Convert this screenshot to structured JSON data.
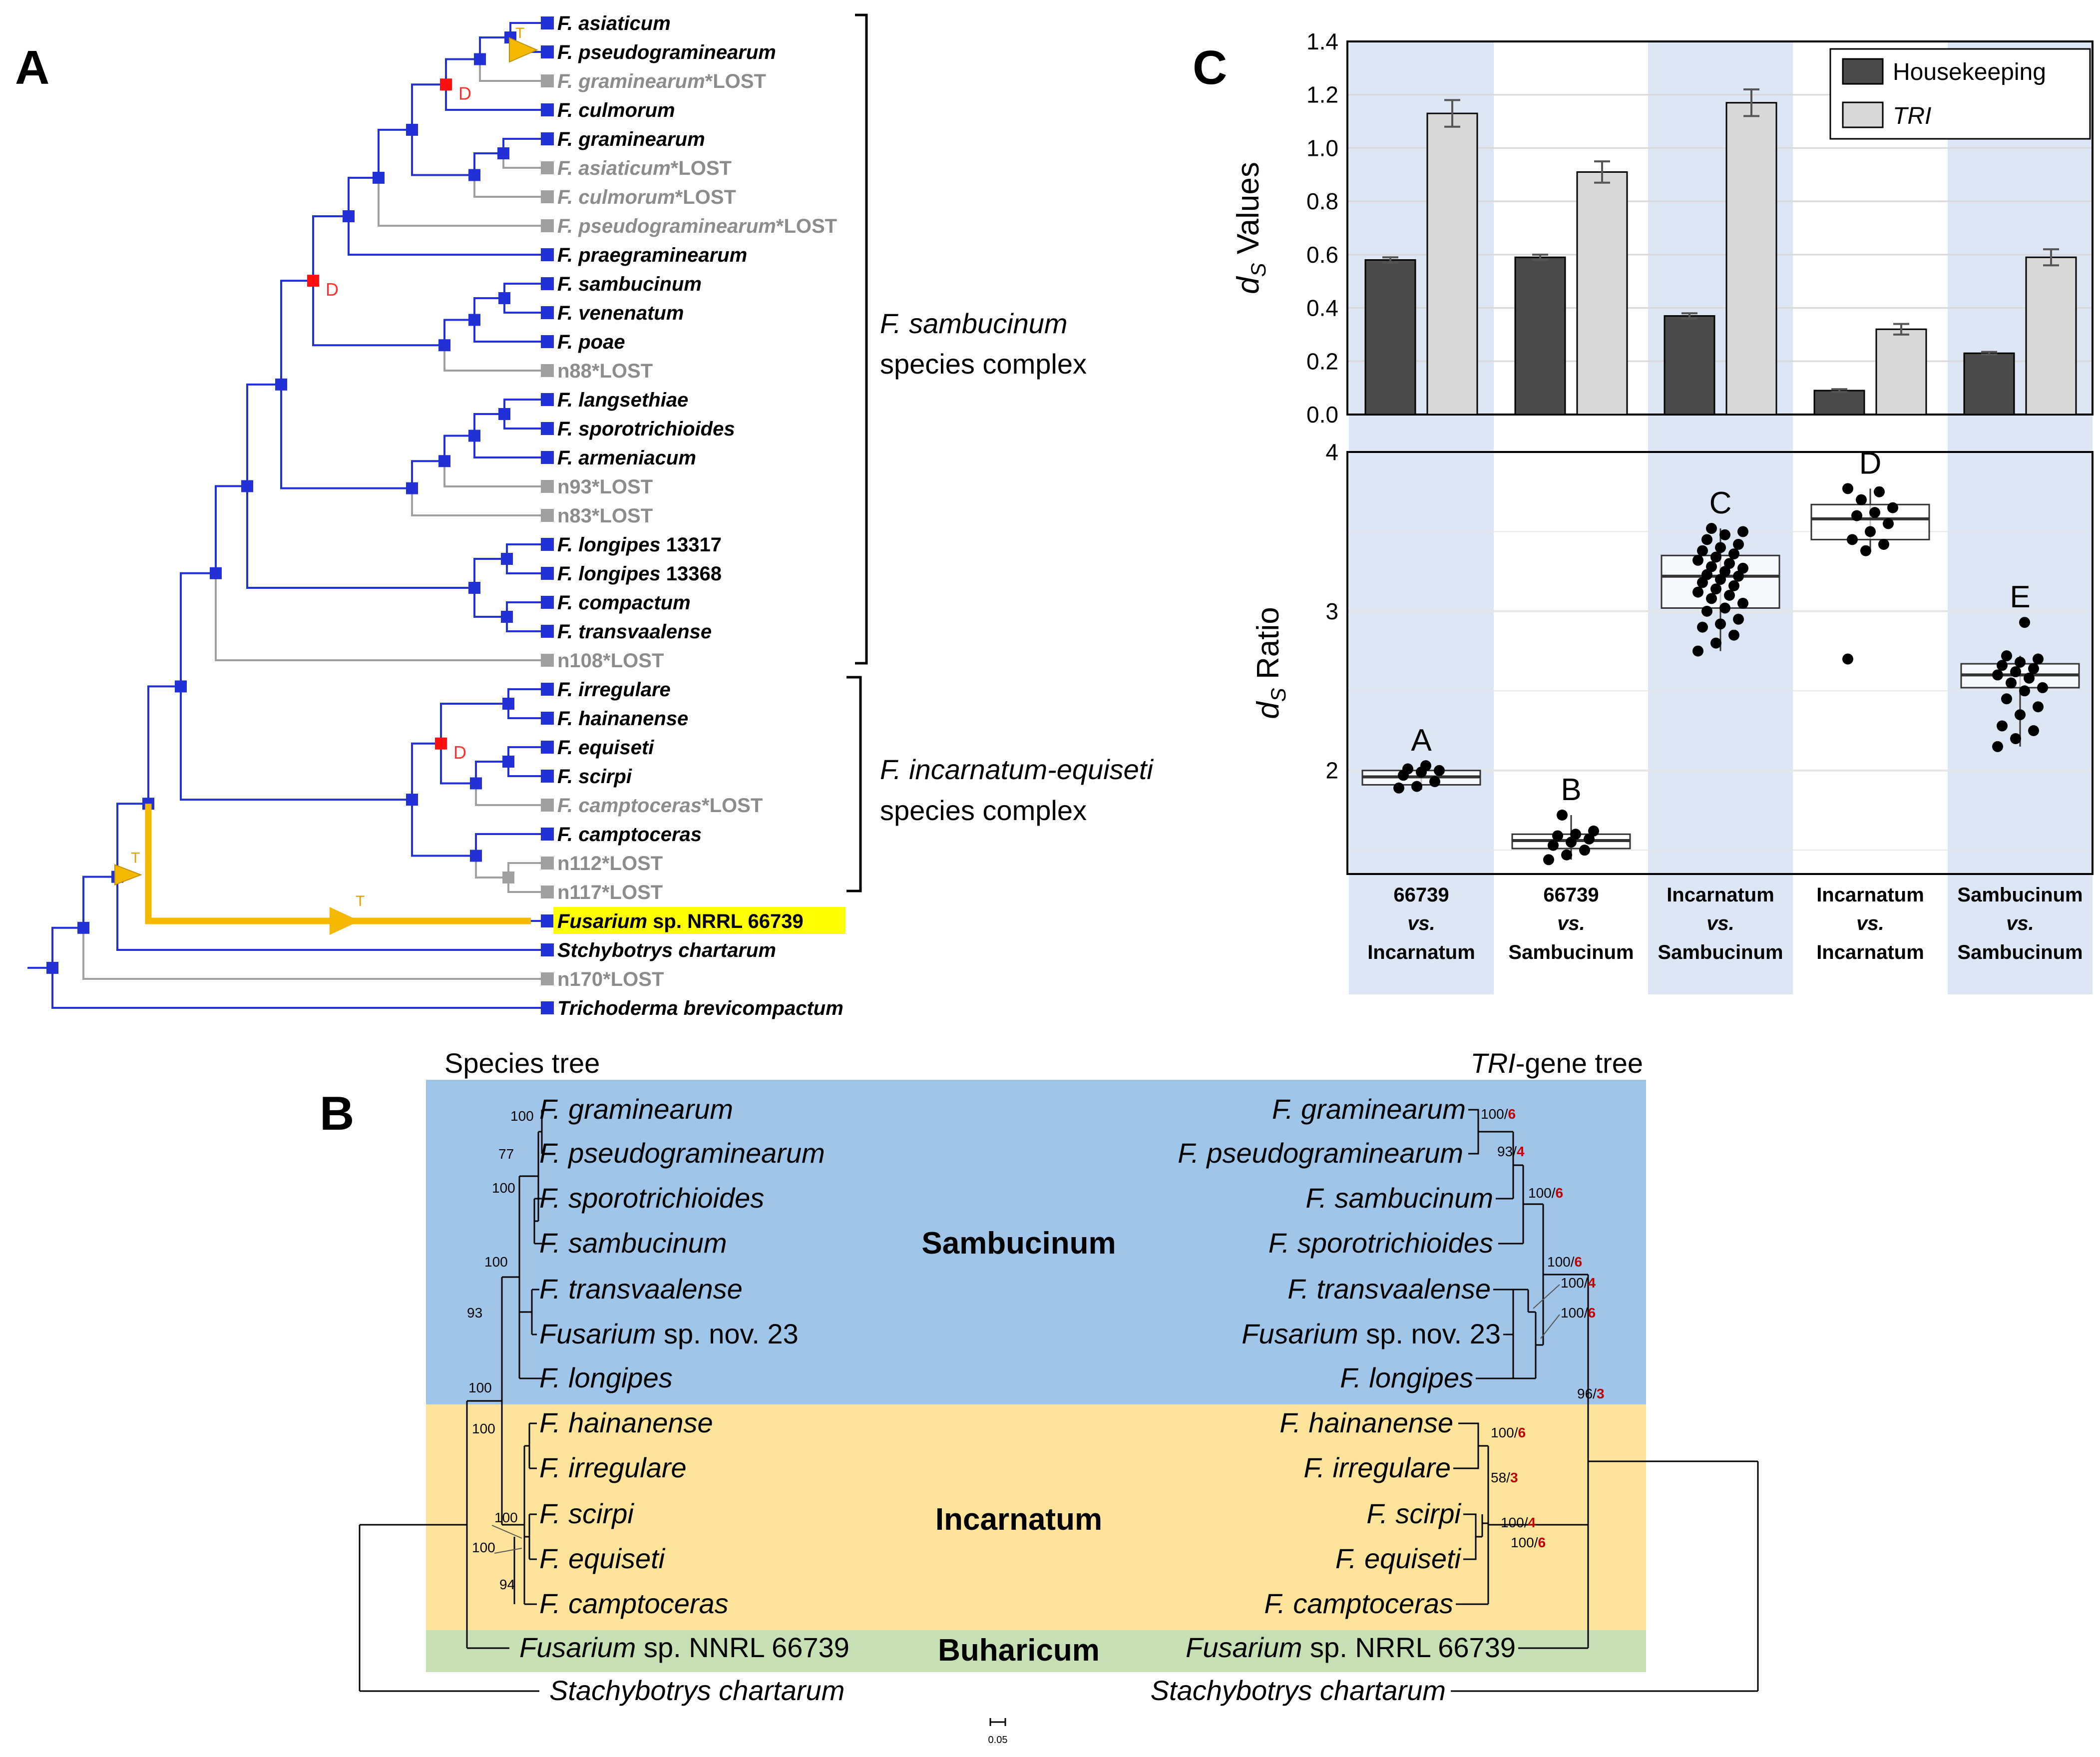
{
  "colors": {
    "species_branch": "#2231d6",
    "lost_branch": "#a0a0a0",
    "transfer": "#f5b800",
    "duplication": "#ff1010",
    "highlight": "#ffff00",
    "housekeeping": "#4a4a4a",
    "tri": "#d8d8d8",
    "shade": "#dce6f5",
    "sambucinum_bg": "#9fc5e8",
    "incarnatum_bg": "#fde49a",
    "buharicum_bg": "#c6e0b4"
  },
  "panel_a": {
    "label": "A",
    "event_dup": "D",
    "event_transfer": "T",
    "leaves": [
      {
        "name": "F. asiaticum",
        "status": "present"
      },
      {
        "name": "F. pseudograminearum",
        "status": "present"
      },
      {
        "name": "F. graminearum*LOST",
        "status": "lost"
      },
      {
        "name": "F. culmorum",
        "status": "present"
      },
      {
        "name": "F. graminearum",
        "status": "present"
      },
      {
        "name": "F. asiaticum*LOST",
        "status": "lost"
      },
      {
        "name": "F. culmorum*LOST",
        "status": "lost"
      },
      {
        "name": "F. pseudograminearum*LOST",
        "status": "lost"
      },
      {
        "name": "F. praegraminearum",
        "status": "present"
      },
      {
        "name": "F. sambucinum",
        "status": "present"
      },
      {
        "name": "F. venenatum",
        "status": "present"
      },
      {
        "name": "F. poae",
        "status": "present"
      },
      {
        "name": "n88*LOST",
        "status": "lost"
      },
      {
        "name": "F. langsethiae",
        "status": "present"
      },
      {
        "name": "F. sporotrichioides",
        "status": "present"
      },
      {
        "name": "F. armeniacum",
        "status": "present"
      },
      {
        "name": "n93*LOST",
        "status": "lost"
      },
      {
        "name": "n83*LOST",
        "status": "lost"
      },
      {
        "name": "F. longipes 13317",
        "status": "present"
      },
      {
        "name": "F. longipes 13368",
        "status": "present"
      },
      {
        "name": "F. compactum",
        "status": "present"
      },
      {
        "name": "F. transvaalense",
        "status": "present"
      },
      {
        "name": "n108*LOST",
        "status": "lost"
      },
      {
        "name": "F. irregulare",
        "status": "present"
      },
      {
        "name": "F. hainanense",
        "status": "present"
      },
      {
        "name": "F. equiseti",
        "status": "present"
      },
      {
        "name": "F. scirpi",
        "status": "present"
      },
      {
        "name": "F. camptoceras*LOST",
        "status": "lost"
      },
      {
        "name": "F. camptoceras",
        "status": "present"
      },
      {
        "name": "n112*LOST",
        "status": "lost"
      },
      {
        "name": "n117*LOST",
        "status": "lost"
      },
      {
        "name": "Fusarium sp. NRRL 66739",
        "status": "highlight"
      },
      {
        "name": "Stchybotrys chartarum",
        "status": "present"
      },
      {
        "name": "n170*LOST",
        "status": "lost"
      },
      {
        "name": "Trichoderma brevicompactum",
        "status": "present"
      }
    ],
    "complexes": [
      {
        "line1": "F. sambucinum",
        "line2": "species complex"
      },
      {
        "line1": "F. incarnatum-equiseti",
        "line2": "species complex"
      }
    ]
  },
  "panel_c": {
    "label": "C",
    "chart_data": [
      {
        "type": "bar",
        "title": "",
        "ylabel_sym": "d",
        "ylabel_sub": "S",
        "ylabel_rest": " Values",
        "ylim": [
          0,
          1.4
        ],
        "yticks": [
          "0.0",
          "0.2",
          "0.4",
          "0.6",
          "0.8",
          "1.0",
          "1.2",
          "1.4"
        ],
        "categories": [
          "66739 vs. Incarnatum",
          "66739 vs. Sambucinum",
          "Incarnatum vs. Sambucinum",
          "Incarnatum vs. Incarnatum",
          "Sambucinum vs. Sambucinum"
        ],
        "series": [
          {
            "name": "Housekeeping",
            "values": [
              0.58,
              0.59,
              0.37,
              0.09,
              0.23
            ],
            "errors": [
              0.01,
              0.01,
              0.01,
              0.005,
              0.005
            ]
          },
          {
            "name": "TRI",
            "values": [
              1.13,
              0.91,
              1.17,
              0.32,
              0.59
            ],
            "errors": [
              0.05,
              0.04,
              0.05,
              0.02,
              0.03
            ]
          }
        ]
      },
      {
        "type": "boxplot",
        "ylabel_sym": "d",
        "ylabel_sub": "S",
        "ylabel_rest": " Ratio",
        "ylim": [
          1.35,
          4.0
        ],
        "yticks": [
          "2",
          "3",
          "4"
        ],
        "letters": [
          "A",
          "B",
          "C",
          "D",
          "E"
        ],
        "boxes": [
          {
            "q1": 1.91,
            "median": 1.96,
            "q3": 2.0,
            "whisker_low": 1.88,
            "whisker_high": 2.03,
            "points": [
              1.89,
              1.9,
              1.93,
              1.97,
              1.99,
              2.0,
              2.01,
              2.03
            ]
          },
          {
            "q1": 1.51,
            "median": 1.56,
            "q3": 1.6,
            "whisker_low": 1.44,
            "whisker_high": 1.72,
            "points": [
              1.44,
              1.47,
              1.5,
              1.53,
              1.55,
              1.57,
              1.59,
              1.6,
              1.62,
              1.72
            ]
          },
          {
            "q1": 3.02,
            "median": 3.22,
            "q3": 3.35,
            "whisker_low": 2.75,
            "whisker_high": 3.52,
            "points": [
              2.75,
              2.8,
              2.85,
              2.9,
              2.92,
              2.95,
              3.0,
              3.02,
              3.05,
              3.08,
              3.1,
              3.12,
              3.14,
              3.16,
              3.18,
              3.2,
              3.22,
              3.23,
              3.25,
              3.27,
              3.28,
              3.3,
              3.32,
              3.34,
              3.36,
              3.38,
              3.4,
              3.42,
              3.45,
              3.48,
              3.5,
              3.52
            ]
          },
          {
            "q1": 3.45,
            "median": 3.58,
            "q3": 3.67,
            "whisker_low": 3.38,
            "whisker_high": 3.77,
            "points": [
              2.7,
              3.38,
              3.42,
              3.45,
              3.5,
              3.55,
              3.6,
              3.62,
              3.65,
              3.7,
              3.75,
              3.77
            ]
          },
          {
            "q1": 2.52,
            "median": 2.6,
            "q3": 2.67,
            "whisker_low": 2.15,
            "whisker_high": 2.72,
            "points": [
              2.15,
              2.2,
              2.25,
              2.28,
              2.35,
              2.4,
              2.45,
              2.5,
              2.52,
              2.55,
              2.58,
              2.6,
              2.62,
              2.64,
              2.66,
              2.68,
              2.7,
              2.72,
              2.93
            ]
          }
        ]
      }
    ],
    "xcats": [
      {
        "l1": "66739",
        "l2": "vs.",
        "l3": "Incarnatum"
      },
      {
        "l1": "66739",
        "l2": "vs.",
        "l3": "Sambucinum"
      },
      {
        "l1": "Incarnatum",
        "l2": "vs.",
        "l3": "Sambucinum"
      },
      {
        "l1": "Incarnatum",
        "l2": "vs.",
        "l3": "Incarnatum"
      },
      {
        "l1": "Sambucinum",
        "l2": "vs.",
        "l3": "Sambucinum"
      }
    ],
    "legend": [
      "Housekeeping",
      "TRI"
    ]
  },
  "panel_b": {
    "label": "B",
    "species_tree_title": "Species tree",
    "gene_tree_title_italic": "TRI",
    "gene_tree_title_rest": "-gene tree",
    "clades": [
      "Sambucinum",
      "Incarnatum",
      "Buharicum"
    ],
    "taxa_left": [
      {
        "it": "F. graminearum",
        "rest": ""
      },
      {
        "it": "F. pseudograminearum",
        "rest": ""
      },
      {
        "it": "F. sporotrichioides",
        "rest": ""
      },
      {
        "it": "F. sambucinum",
        "rest": ""
      },
      {
        "it": "F. transvaalense",
        "rest": ""
      },
      {
        "it": "Fusarium",
        "rest": " sp. nov. 23"
      },
      {
        "it": "F. longipes",
        "rest": ""
      },
      {
        "it": "F. hainanense",
        "rest": ""
      },
      {
        "it": "F. irregulare",
        "rest": ""
      },
      {
        "it": "F. scirpi",
        "rest": ""
      },
      {
        "it": "F. equiseti",
        "rest": ""
      },
      {
        "it": "F. camptoceras",
        "rest": ""
      },
      {
        "it": "Fusarium",
        "rest": " sp. NNRL 66739"
      },
      {
        "it": "Stachybotrys chartarum",
        "rest": ""
      }
    ],
    "taxa_right": [
      {
        "it": "F. graminearum",
        "rest": ""
      },
      {
        "it": "F. pseudograminearum",
        "rest": ""
      },
      {
        "it": "F. sambucinum",
        "rest": ""
      },
      {
        "it": "F. sporotrichioides",
        "rest": ""
      },
      {
        "it": "F. transvaalense",
        "rest": ""
      },
      {
        "it": "Fusarium",
        "rest": " sp. nov. 23"
      },
      {
        "it": "F. longipes",
        "rest": ""
      },
      {
        "it": "F. hainanense",
        "rest": ""
      },
      {
        "it": "F. irregulare",
        "rest": ""
      },
      {
        "it": "F. scirpi",
        "rest": ""
      },
      {
        "it": "F. equiseti",
        "rest": ""
      },
      {
        "it": "F. camptoceras",
        "rest": ""
      },
      {
        "it": "Fusarium",
        "rest": " sp. NRRL 66739"
      },
      {
        "it": "Stachybotrys chartarum",
        "rest": ""
      }
    ],
    "support_left": [
      "100",
      "77",
      "100",
      "100",
      "93",
      "100",
      "100",
      "100",
      "100",
      "94"
    ],
    "support_right": [
      {
        "a": "100/",
        "b": "6"
      },
      {
        "a": "93/",
        "b": "4"
      },
      {
        "a": "100/",
        "b": "6"
      },
      {
        "a": "100/",
        "b": "6"
      },
      {
        "a": "100/",
        "b": "4"
      },
      {
        "a": "100/",
        "b": "6"
      },
      {
        "a": "96/",
        "b": "3"
      },
      {
        "a": "100/",
        "b": "6"
      },
      {
        "a": "58/",
        "b": "3"
      },
      {
        "a": "100/",
        "b": "4"
      },
      {
        "a": "100/",
        "b": "6"
      }
    ],
    "scale_label": "0.05"
  }
}
